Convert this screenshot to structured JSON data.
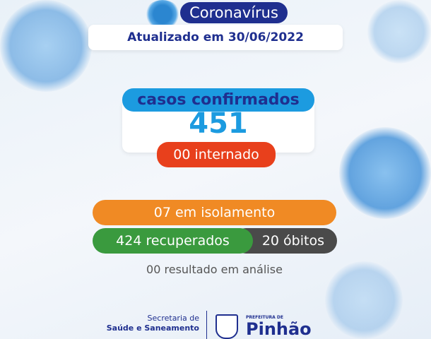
{
  "header": {
    "title": "Coronavírus",
    "updated": "Atualizado em 30/06/2022"
  },
  "stats": {
    "confirmed_label": "casos confirmados",
    "confirmed_value": "451",
    "hospitalized": "00 internado",
    "isolation": "07 em isolamento",
    "recovered": "424 recuperados",
    "deaths": "20 óbitos",
    "pending": "00 resultado em análise"
  },
  "footer": {
    "secretaria_line1": "Secretaria de",
    "secretaria_line2": "Saúde e Saneamento",
    "prefeitura_small": "PREFEITURA DE",
    "prefeitura_name": "Pinhão",
    "crest_text": "PINHÃO"
  },
  "colors": {
    "navy": "#1f2f8f",
    "blue": "#1c9be0",
    "red": "#e8401c",
    "orange": "#f08a24",
    "green": "#3a9a3e",
    "gray": "#4a4a4a"
  }
}
